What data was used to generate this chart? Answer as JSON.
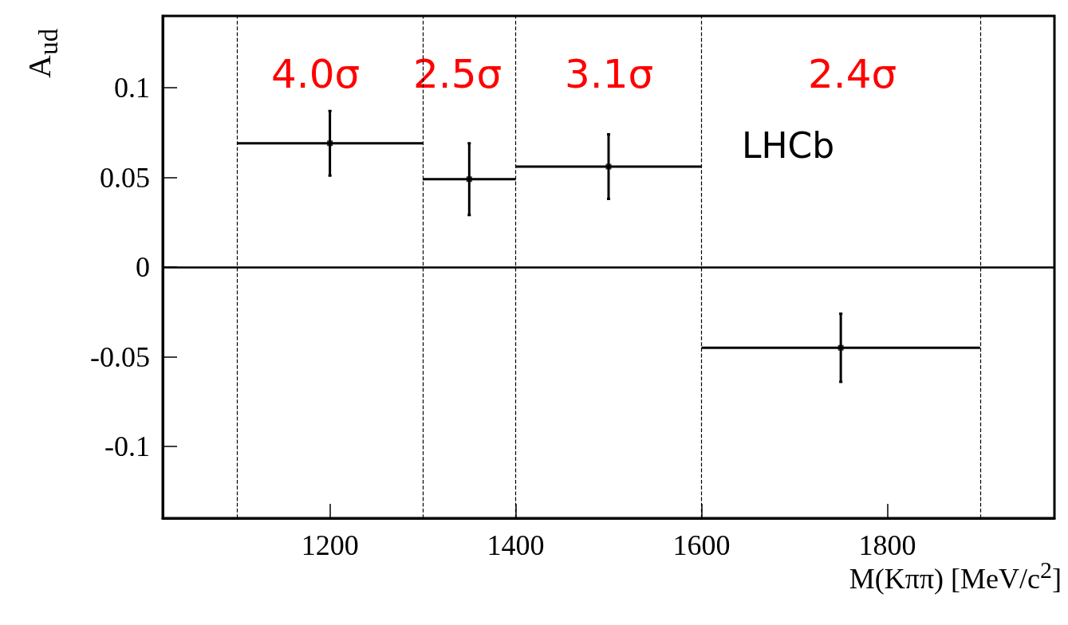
{
  "chart_data": {
    "type": "scatter",
    "xlabel": "M(Kππ) [MeV/c$^{2}$]",
    "ylabel": "A$_{ud}$",
    "x": [
      1200,
      1350,
      1500,
      1750
    ],
    "values": [
      0.069,
      0.049,
      0.056,
      -0.045
    ],
    "errors": [
      0.018,
      0.02,
      0.018,
      0.019
    ],
    "xerrors": [
      100,
      50,
      100,
      150
    ],
    "color": "#000000",
    "marker": "square",
    "grid": false,
    "xlim": [
      1020,
      1980
    ],
    "xticks": [
      1200,
      1400,
      1600,
      1800
    ],
    "ylim": [
      -0.14,
      0.14
    ],
    "yticks": [
      -0.1,
      -0.05,
      0,
      0.05,
      0.1
    ],
    "ref_lines": [
      {
        "axis": "x",
        "value": 1100,
        "line_style": "dashed"
      },
      {
        "axis": "x",
        "value": 1300,
        "line_style": "dashed"
      },
      {
        "axis": "x",
        "value": 1400,
        "line_style": "dashed"
      },
      {
        "axis": "x",
        "value": 1600,
        "line_style": "dashed"
      },
      {
        "axis": "x",
        "value": 1900,
        "line_style": "dashed"
      },
      {
        "axis": "y",
        "value": 0,
        "line_style": "solid"
      }
    ],
    "annotations": [
      "4.0σ",
      "2.5σ",
      "3.1σ",
      "2.4σ",
      "LHCb"
    ]
  }
}
